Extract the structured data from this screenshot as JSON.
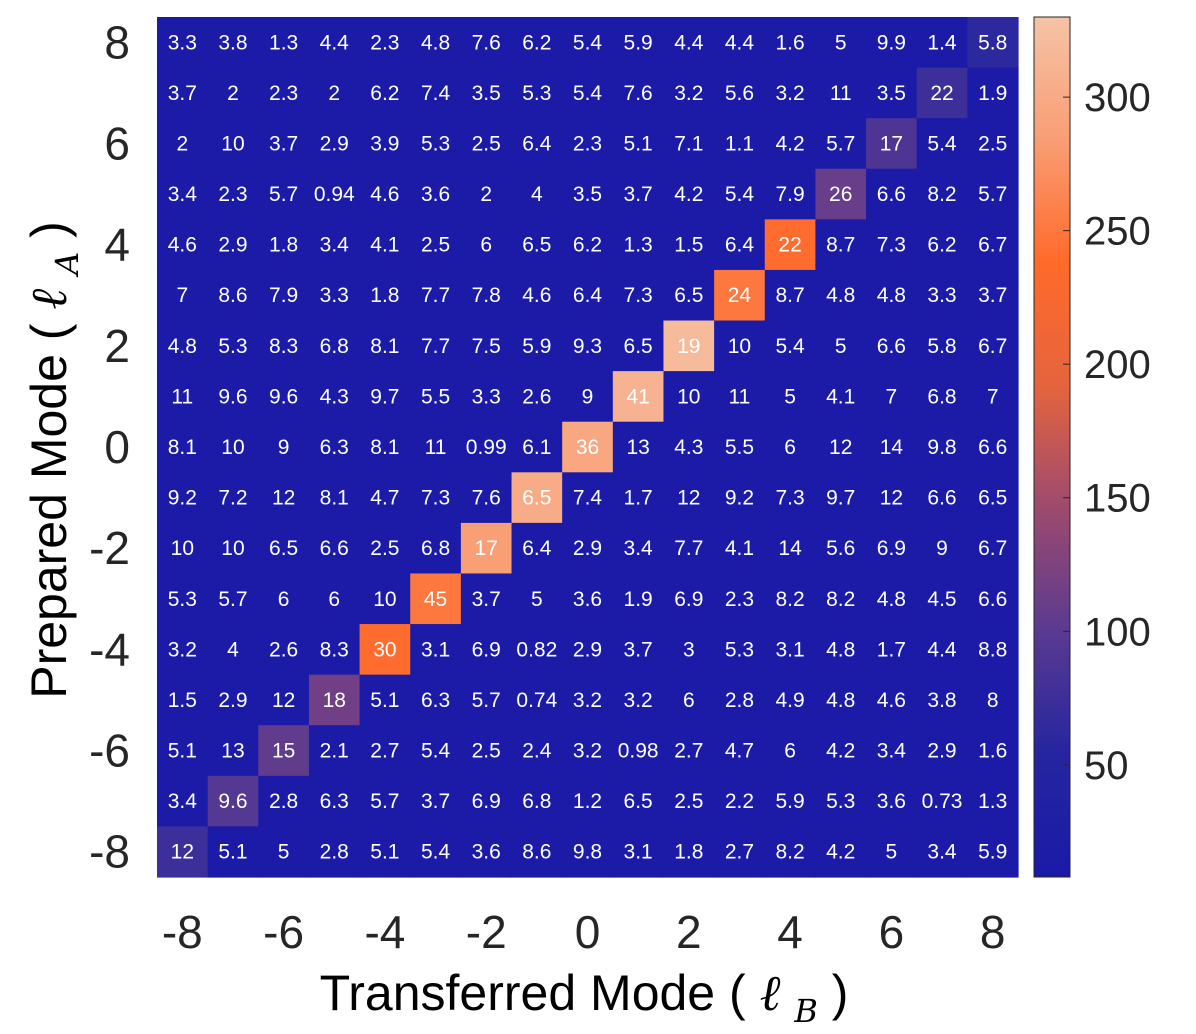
{
  "chart_data": {
    "type": "heatmap",
    "xlabel": "Transferred Mode",
    "xlabel_symbol": "ℓ",
    "xlabel_sub": "B",
    "ylabel": "Prepared Mode",
    "ylabel_symbol": "ℓ",
    "ylabel_sub": "A",
    "x_categories": [
      -8,
      -7,
      -6,
      -5,
      -4,
      -3,
      -2,
      -1,
      0,
      1,
      2,
      3,
      4,
      5,
      6,
      7,
      8
    ],
    "y_categories": [
      8,
      7,
      6,
      5,
      4,
      3,
      2,
      1,
      0,
      -1,
      -2,
      -3,
      -4,
      -5,
      -6,
      -7,
      -8
    ],
    "x_tick_labels": [
      "-8",
      "-6",
      "-4",
      "-2",
      "0",
      "2",
      "4",
      "6",
      "8"
    ],
    "y_tick_labels": [
      "8",
      "6",
      "4",
      "2",
      "0",
      "-2",
      "-4",
      "-6",
      "-8"
    ],
    "cell_labels": [
      [
        "3.3",
        "3.8",
        "1.3",
        "4.4",
        "2.3",
        "4.8",
        "7.6",
        "6.2",
        "5.4",
        "5.9",
        "4.4",
        "4.4",
        "1.6",
        "5",
        "9.9",
        "1.4",
        "5.8"
      ],
      [
        "3.7",
        "2",
        "2.3",
        "2",
        "6.2",
        "7.4",
        "3.5",
        "5.3",
        "5.4",
        "7.6",
        "3.2",
        "5.6",
        "3.2",
        "11",
        "3.5",
        "22",
        "1.9"
      ],
      [
        "2",
        "10",
        "3.7",
        "2.9",
        "3.9",
        "5.3",
        "2.5",
        "6.4",
        "2.3",
        "5.1",
        "7.1",
        "1.1",
        "4.2",
        "5.7",
        "17",
        "5.4",
        "2.5"
      ],
      [
        "3.4",
        "2.3",
        "5.7",
        "0.94",
        "4.6",
        "3.6",
        "2",
        "4",
        "3.5",
        "3.7",
        "4.2",
        "5.4",
        "7.9",
        "26",
        "6.6",
        "8.2",
        "5.7"
      ],
      [
        "4.6",
        "2.9",
        "1.8",
        "3.4",
        "4.1",
        "2.5",
        "6",
        "6.5",
        "6.2",
        "1.3",
        "1.5",
        "6.4",
        "22",
        "8.7",
        "7.3",
        "6.2",
        "6.7"
      ],
      [
        "7",
        "8.6",
        "7.9",
        "3.3",
        "1.8",
        "7.7",
        "7.8",
        "4.6",
        "6.4",
        "7.3",
        "6.5",
        "24",
        "8.7",
        "4.8",
        "4.8",
        "3.3",
        "3.7"
      ],
      [
        "4.8",
        "5.3",
        "8.3",
        "6.8",
        "8.1",
        "7.7",
        "7.5",
        "5.9",
        "9.3",
        "6.5",
        "19",
        "10",
        "5.4",
        "5",
        "6.6",
        "5.8",
        "6.7"
      ],
      [
        "11",
        "9.6",
        "9.6",
        "4.3",
        "9.7",
        "5.5",
        "3.3",
        "2.6",
        "9",
        "41",
        "10",
        "11",
        "5",
        "4.1",
        "7",
        "6.8",
        "7"
      ],
      [
        "8.1",
        "10",
        "9",
        "6.3",
        "8.1",
        "11",
        "0.99",
        "6.1",
        "36",
        "13",
        "4.3",
        "5.5",
        "6",
        "12",
        "14",
        "9.8",
        "6.6"
      ],
      [
        "9.2",
        "7.2",
        "12",
        "8.1",
        "4.7",
        "7.3",
        "7.6",
        "6.5",
        "7.4",
        "1.7",
        "12",
        "9.2",
        "7.3",
        "9.7",
        "12",
        "6.6",
        "6.5"
      ],
      [
        "10",
        "10",
        "6.5",
        "6.6",
        "2.5",
        "6.8",
        "17",
        "6.4",
        "2.9",
        "3.4",
        "7.7",
        "4.1",
        "14",
        "5.6",
        "6.9",
        "9",
        "6.7"
      ],
      [
        "5.3",
        "5.7",
        "6",
        "6",
        "10",
        "45",
        "3.7",
        "5",
        "3.6",
        "1.9",
        "6.9",
        "2.3",
        "8.2",
        "8.2",
        "4.8",
        "4.5",
        "6.6"
      ],
      [
        "3.2",
        "4",
        "2.6",
        "8.3",
        "30",
        "3.1",
        "6.9",
        "0.82",
        "2.9",
        "3.7",
        "3",
        "5.3",
        "3.1",
        "4.8",
        "1.7",
        "4.4",
        "8.8"
      ],
      [
        "1.5",
        "2.9",
        "12",
        "18",
        "5.1",
        "6.3",
        "5.7",
        "0.74",
        "3.2",
        "3.2",
        "6",
        "2.8",
        "4.9",
        "4.8",
        "4.6",
        "3.8",
        "8"
      ],
      [
        "5.1",
        "13",
        "15",
        "2.1",
        "2.7",
        "5.4",
        "2.5",
        "2.4",
        "3.2",
        "0.98",
        "2.7",
        "4.7",
        "6",
        "4.2",
        "3.4",
        "2.9",
        "1.6"
      ],
      [
        "3.4",
        "9.6",
        "2.8",
        "6.3",
        "5.7",
        "3.7",
        "6.9",
        "6.8",
        "1.2",
        "6.5",
        "2.5",
        "2.2",
        "5.9",
        "5.3",
        "3.6",
        "0.73",
        "1.3"
      ],
      [
        "12",
        "5.1",
        "5",
        "2.8",
        "5.1",
        "5.4",
        "3.6",
        "8.6",
        "9.8",
        "3.1",
        "1.8",
        "2.7",
        "8.2",
        "4.2",
        "5",
        "3.4",
        "5.9"
      ]
    ],
    "diagonal_colour_values": {
      "-8": 75,
      "-7": 95,
      "-6": 105,
      "-5": 115,
      "-4": 240,
      "-3": 250,
      "-2": 285,
      "-1": 300,
      "0": 295,
      "1": 310,
      "2": 320,
      "3": 250,
      "4": 240,
      "5": 110,
      "6": 90,
      "7": 75,
      "8": 60
    },
    "background_colour_value": 12,
    "colorbar": {
      "range": [
        8,
        330
      ],
      "ticks": [
        50,
        100,
        150,
        200,
        250,
        300
      ],
      "tick_labels": [
        "50",
        "100",
        "150",
        "200",
        "250",
        "300"
      ],
      "colormap": [
        "#1a1aa8",
        "#2525a0",
        "#5a3a90",
        "#9c4a6e",
        "#e5643e",
        "#ff6a2a",
        "#f89e75",
        "#f6c3a6"
      ]
    },
    "grid": false,
    "legend": "colorbar-right"
  },
  "colors": {
    "cell_text": "#ffffff",
    "tick_text": "#262626",
    "axis_title": "#000000"
  }
}
